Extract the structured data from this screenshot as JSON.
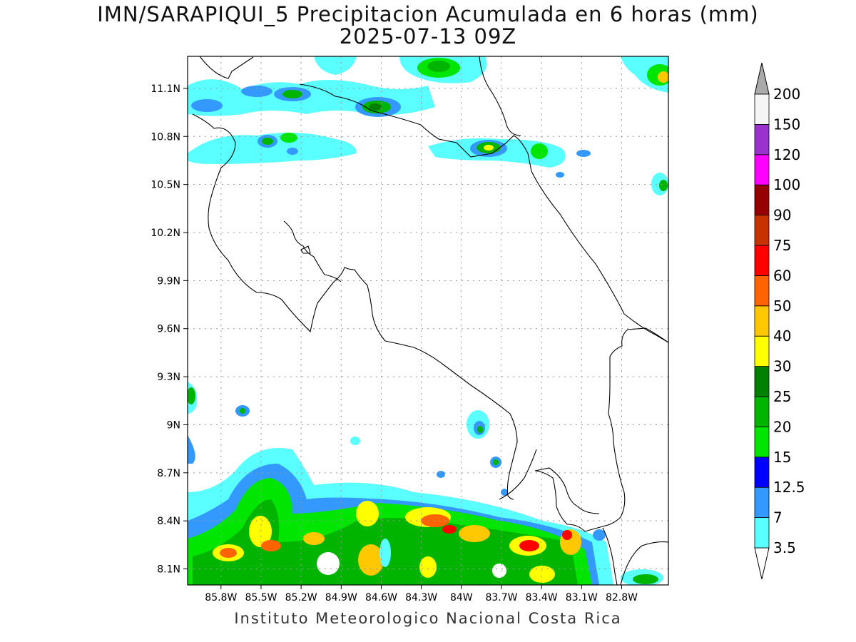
{
  "title": {
    "line1": "IMN/SARAPIQUI_5 Precipitacion Acumulada en 6 horas (mm)",
    "line2": "2025-07-13 09Z"
  },
  "footer": "Instituto Meteorologico Nacional Costa Rica",
  "map": {
    "lon_range": [
      -86.05,
      -82.45
    ],
    "lat_range": [
      8.0,
      11.3
    ],
    "grid": true,
    "lat_ticks": [
      {
        "value": 11.1,
        "label": "11.1N"
      },
      {
        "value": 10.8,
        "label": "10.8N"
      },
      {
        "value": 10.5,
        "label": "10.5N"
      },
      {
        "value": 10.2,
        "label": "10.2N"
      },
      {
        "value": 9.9,
        "label": "9.9N"
      },
      {
        "value": 9.6,
        "label": "9.6N"
      },
      {
        "value": 9.3,
        "label": "9.3N"
      },
      {
        "value": 9.0,
        "label": "9N"
      },
      {
        "value": 8.7,
        "label": "8.7N"
      },
      {
        "value": 8.4,
        "label": "8.4N"
      },
      {
        "value": 8.1,
        "label": "8.1N"
      }
    ],
    "lon_ticks": [
      {
        "value": -85.8,
        "label": "85.8W"
      },
      {
        "value": -85.5,
        "label": "85.5W"
      },
      {
        "value": -85.2,
        "label": "85.2W"
      },
      {
        "value": -84.9,
        "label": "84.9W"
      },
      {
        "value": -84.6,
        "label": "84.6W"
      },
      {
        "value": -84.3,
        "label": "84.3W"
      },
      {
        "value": -84.0,
        "label": "84W"
      },
      {
        "value": -83.7,
        "label": "83.7W"
      },
      {
        "value": -83.4,
        "label": "83.4W"
      },
      {
        "value": -83.1,
        "label": "83.1W"
      },
      {
        "value": -82.8,
        "label": "82.8W"
      }
    ]
  },
  "colorbar": {
    "labels": [
      "3.5",
      "7",
      "12.5",
      "15",
      "20",
      "25",
      "30",
      "40",
      "50",
      "60",
      "75",
      "90",
      "100",
      "120",
      "150",
      "200"
    ],
    "colors": [
      "#ffffff",
      "#5affff",
      "#3399ff",
      "#0000ff",
      "#00e600",
      "#00b400",
      "#008000",
      "#ffff00",
      "#ffc800",
      "#ff6400",
      "#ff0000",
      "#c83200",
      "#960000",
      "#ff00ff",
      "#9933cc",
      "#f5f5f5"
    ],
    "under_color": "#ffffff",
    "over_color": "#aaaaaa"
  }
}
